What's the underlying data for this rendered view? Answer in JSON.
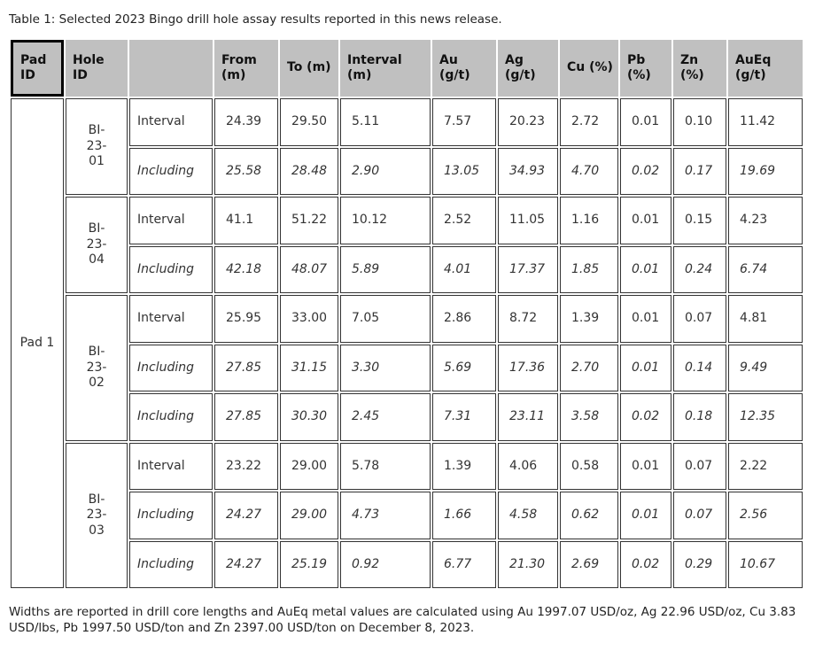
{
  "page": {
    "title": "Table 1: Selected 2023 Bingo drill hole assay results reported in this news release.",
    "footnote": "Widths are reported in drill core lengths and AuEq metal values are calculated using Au 1997.07 USD/oz, Ag 22.96 USD/oz, Cu 3.83 USD/lbs, Pb 1997.50 USD/ton and Zn 2397.00 USD/ton on December 8, 2023."
  },
  "colors": {
    "header_bg": "#c0c0c0",
    "header_text": "#111111",
    "body_text": "#333333",
    "border": "#333333",
    "pad_id_header_border": "#000000",
    "page_bg": "#ffffff"
  },
  "table": {
    "columns": [
      "Pad ID",
      "Hole ID",
      "",
      "From (m)",
      "To (m)",
      "Interval (m)",
      "Au (g/t)",
      "Ag (g/t)",
      "Cu (%)",
      "Pb (%)",
      "Zn (%)",
      "AuEq (g/t)"
    ],
    "pad_id": "Pad 1",
    "holes": [
      {
        "hole_id": "BI-23-01",
        "rows": [
          {
            "label": "Interval",
            "from": "24.39",
            "to": "29.50",
            "interval": "5.11",
            "au": "7.57",
            "ag": "20.23",
            "cu": "2.72",
            "pb": "0.01",
            "zn": "0.10",
            "aueq": "11.42"
          },
          {
            "label": "Including",
            "from": "25.58",
            "to": "28.48",
            "interval": "2.90",
            "au": "13.05",
            "ag": "34.93",
            "cu": "4.70",
            "pb": "0.02",
            "zn": "0.17",
            "aueq": "19.69"
          }
        ]
      },
      {
        "hole_id": "BI-23-04",
        "rows": [
          {
            "label": "Interval",
            "from": "41.1",
            "to": "51.22",
            "interval": "10.12",
            "au": "2.52",
            "ag": "11.05",
            "cu": "1.16",
            "pb": "0.01",
            "zn": "0.15",
            "aueq": "4.23"
          },
          {
            "label": "Including",
            "from": "42.18",
            "to": "48.07",
            "interval": "5.89",
            "au": "4.01",
            "ag": "17.37",
            "cu": "1.85",
            "pb": "0.01",
            "zn": "0.24",
            "aueq": "6.74"
          }
        ]
      },
      {
        "hole_id": "BI-23-02",
        "rows": [
          {
            "label": "Interval",
            "from": "25.95",
            "to": "33.00",
            "interval": "7.05",
            "au": "2.86",
            "ag": "8.72",
            "cu": "1.39",
            "pb": "0.01",
            "zn": "0.07",
            "aueq": "4.81"
          },
          {
            "label": "Including",
            "from": "27.85",
            "to": "31.15",
            "interval": "3.30",
            "au": "5.69",
            "ag": "17.36",
            "cu": "2.70",
            "pb": "0.01",
            "zn": "0.14",
            "aueq": "9.49"
          },
          {
            "label": "Including",
            "from": "27.85",
            "to": "30.30",
            "interval": "2.45",
            "au": "7.31",
            "ag": "23.11",
            "cu": "3.58",
            "pb": "0.02",
            "zn": "0.18",
            "aueq": "12.35"
          }
        ]
      },
      {
        "hole_id": "BI-23-03",
        "rows": [
          {
            "label": "Interval",
            "from": "23.22",
            "to": "29.00",
            "interval": "5.78",
            "au": "1.39",
            "ag": "4.06",
            "cu": "0.58",
            "pb": "0.01",
            "zn": "0.07",
            "aueq": "2.22"
          },
          {
            "label": "Including",
            "from": "24.27",
            "to": "29.00",
            "interval": "4.73",
            "au": "1.66",
            "ag": "4.58",
            "cu": "0.62",
            "pb": "0.01",
            "zn": "0.07",
            "aueq": "2.56"
          },
          {
            "label": "Including",
            "from": "24.27",
            "to": "25.19",
            "interval": "0.92",
            "au": "6.77",
            "ag": "21.30",
            "cu": "2.69",
            "pb": "0.02",
            "zn": "0.29",
            "aueq": "10.67"
          }
        ]
      }
    ]
  }
}
